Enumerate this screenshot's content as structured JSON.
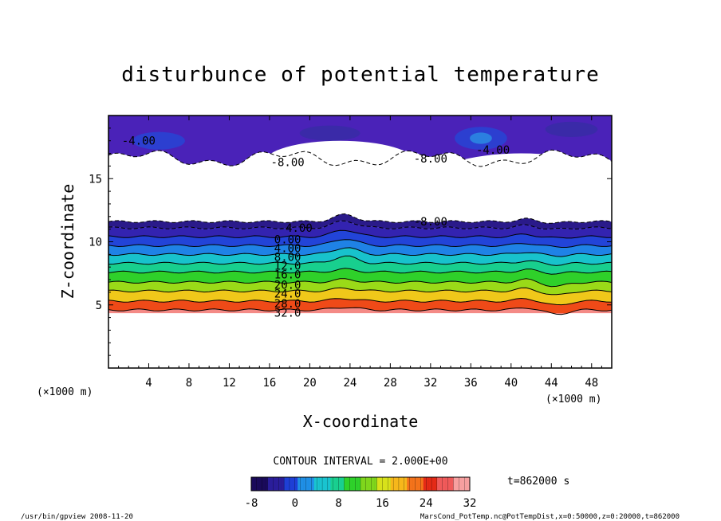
{
  "chart_data": {
    "type": "heatmap",
    "title": "disturbunce of potential temperature",
    "xlabel": "X-coordinate",
    "ylabel": "Z-coordinate",
    "x_unit_left": "(×1000 m)",
    "x_unit_right": "(×1000 m)",
    "xlim": [
      0,
      50
    ],
    "ylim": [
      0,
      20
    ],
    "x_ticks": [
      4,
      8,
      12,
      16,
      20,
      24,
      28,
      32,
      36,
      40,
      44,
      48
    ],
    "y_ticks": [
      5,
      10,
      15
    ],
    "contour_interval_text": "CONTOUR INTERVAL = 2.000E+00",
    "time_text": "t=862000 s",
    "colorbar": {
      "min": -8,
      "max": 32,
      "ticks": [
        -8,
        0,
        8,
        16,
        24,
        32
      ],
      "colors": [
        "#1a0a5a",
        "#2a1d9a",
        "#1e3fd6",
        "#1f8fe6",
        "#19c4d0",
        "#19d090",
        "#2ed12a",
        "#7fd61c",
        "#d8e21a",
        "#f7b81b",
        "#f4731b",
        "#e42a16",
        "#f05a5a",
        "#f7a0a0"
      ]
    },
    "contour_labels": [
      {
        "text": "-4.00",
        "x": 3.0,
        "z": 18.0
      },
      {
        "text": "-8.00",
        "x": 17.8,
        "z": 16.3
      },
      {
        "text": "-8.00",
        "x": 32.0,
        "z": 16.6
      },
      {
        "text": "-4.00",
        "x": 38.2,
        "z": 17.3
      },
      {
        "text": "-4.00",
        "x": 18.6,
        "z": 11.1
      },
      {
        "text": "-8.00",
        "x": 32.0,
        "z": 11.6
      },
      {
        "text": "0.00",
        "x": 17.8,
        "z": 10.2
      },
      {
        "text": "4.00",
        "x": 17.8,
        "z": 9.5
      },
      {
        "text": "8.00",
        "x": 17.8,
        "z": 8.8
      },
      {
        "text": "12.0",
        "x": 17.8,
        "z": 8.1
      },
      {
        "text": "16.0",
        "x": 17.8,
        "z": 7.4
      },
      {
        "text": "20.0",
        "x": 17.8,
        "z": 6.6
      },
      {
        "text": "24.0",
        "x": 17.8,
        "z": 5.9
      },
      {
        "text": "28.0",
        "x": 17.8,
        "z": 5.1
      },
      {
        "text": "32.0",
        "x": 17.8,
        "z": 4.4
      }
    ],
    "series": [
      {
        "value": -8,
        "z": 11.6,
        "color": "#2a1a8a"
      },
      {
        "value": -4,
        "z": 11.1,
        "color": "#3323b0"
      },
      {
        "value": 0,
        "z": 10.4,
        "color": "#2244d8"
      },
      {
        "value": 4,
        "z": 9.7,
        "color": "#1f82e6"
      },
      {
        "value": 8,
        "z": 9.0,
        "color": "#18c2cc"
      },
      {
        "value": 12,
        "z": 8.3,
        "color": "#18cf8e"
      },
      {
        "value": 16,
        "z": 7.6,
        "color": "#2fd02a"
      },
      {
        "value": 20,
        "z": 6.8,
        "color": "#9ada18"
      },
      {
        "value": 24,
        "z": 6.1,
        "color": "#f0c81a"
      },
      {
        "value": 28,
        "z": 5.3,
        "color": "#ef4a18"
      },
      {
        "value": 32,
        "z": 4.6,
        "color": "#f48a86"
      }
    ]
  },
  "footer": {
    "left": "/usr/bin/gpview 2008-11-20",
    "right": "MarsCond_PotTemp.nc@PotTempDist,x=0:50000,z=0:20000,t=862000"
  }
}
